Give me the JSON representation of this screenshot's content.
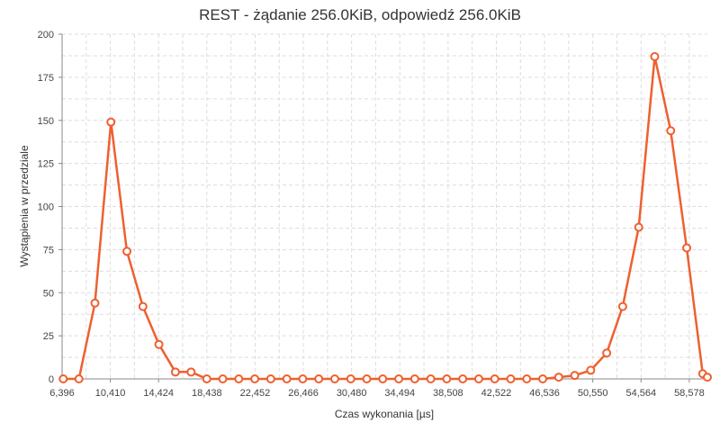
{
  "chart_data": {
    "type": "line",
    "title": "REST - żądanie 256.0KiB, odpowiedź 256.0KiB",
    "xlabel": "Czas wykonania [µs]",
    "ylabel": "Wystąpienia w przedziale",
    "xlim": [
      6396,
      60083
    ],
    "ylim": [
      0,
      200
    ],
    "x_ticks": [
      6396,
      10410,
      14424,
      18438,
      22452,
      26466,
      30480,
      34494,
      38508,
      42522,
      46536,
      50550,
      54564,
      58578
    ],
    "x_tick_labels": [
      "6,396",
      "10,410",
      "14,424",
      "18,438",
      "22,452",
      "26,466",
      "30,480",
      "34,494",
      "38,508",
      "42,522",
      "46,536",
      "50,550",
      "54,564",
      "58,578"
    ],
    "y_ticks": [
      0,
      25,
      50,
      75,
      100,
      125,
      150,
      175,
      200
    ],
    "y_tick_labels": [
      "0",
      "25",
      "50",
      "75",
      "100",
      "125",
      "150",
      "175",
      "200"
    ],
    "grid": true,
    "legend": "none",
    "series": [
      {
        "color": "#ee6030",
        "x": [
          6493,
          7797,
          9128,
          10459,
          11790,
          13121,
          14452,
          15823,
          17128,
          18433,
          19764,
          21095,
          22426,
          23757,
          25088,
          26418,
          27749,
          29080,
          30411,
          31742,
          33073,
          34404,
          35735,
          37066,
          38397,
          39728,
          41059,
          42390,
          43721,
          45052,
          46383,
          47714,
          49045,
          50376,
          51707,
          53038,
          54369,
          55700,
          57031,
          58362,
          59693,
          60083
        ],
        "values": [
          0,
          0,
          44,
          149,
          74,
          42,
          20,
          4,
          4,
          0,
          0,
          0,
          0,
          0,
          0,
          0,
          0,
          0,
          0,
          0,
          0,
          0,
          0,
          0,
          0,
          0,
          0,
          0,
          0,
          0,
          0,
          1,
          2,
          5,
          15,
          42,
          88,
          187,
          144,
          76,
          3,
          1
        ]
      }
    ]
  }
}
